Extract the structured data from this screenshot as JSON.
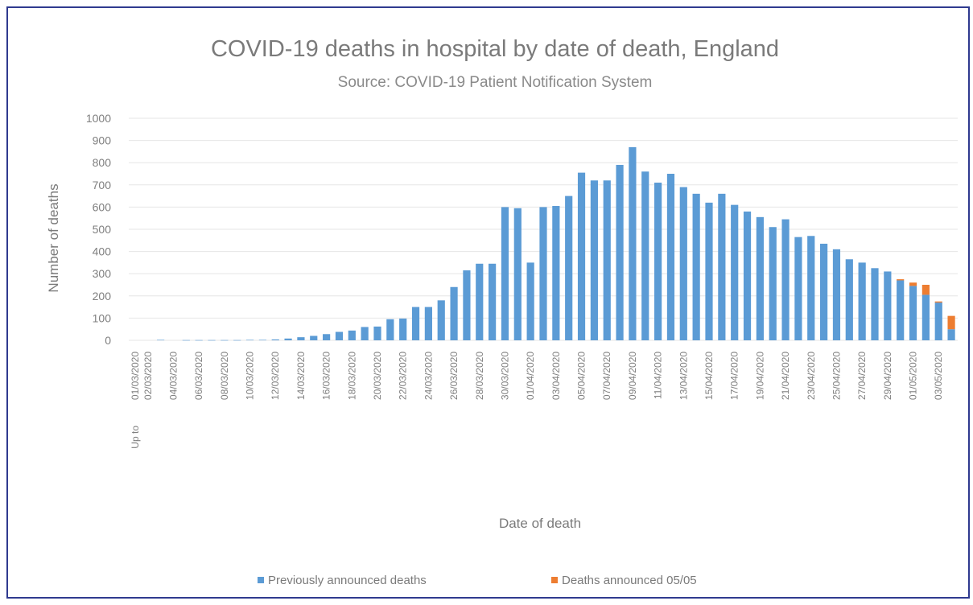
{
  "chart_data": {
    "type": "bar",
    "stacked": true,
    "title": "COVID-19 deaths in hospital by date of death, England",
    "subtitle": "Source: COVID-19 Patient Notification System",
    "xlabel": "Date of death",
    "ylabel": "Number of deaths",
    "ylim": [
      0,
      1000
    ],
    "yticks": [
      0,
      100,
      200,
      300,
      400,
      500,
      600,
      700,
      800,
      900,
      1000
    ],
    "grid": true,
    "legend_position": "bottom",
    "first_category_extra_label": "Up to",
    "categories": [
      "01/03/2020",
      "02/03/2020",
      "03/03/2020",
      "04/03/2020",
      "05/03/2020",
      "06/03/2020",
      "07/03/2020",
      "08/03/2020",
      "09/03/2020",
      "10/03/2020",
      "11/03/2020",
      "12/03/2020",
      "13/03/2020",
      "14/03/2020",
      "15/03/2020",
      "16/03/2020",
      "17/03/2020",
      "18/03/2020",
      "19/03/2020",
      "20/03/2020",
      "21/03/2020",
      "22/03/2020",
      "23/03/2020",
      "24/03/2020",
      "25/03/2020",
      "26/03/2020",
      "27/03/2020",
      "28/03/2020",
      "29/03/2020",
      "30/03/2020",
      "31/03/2020",
      "01/04/2020",
      "02/04/2020",
      "03/04/2020",
      "04/04/2020",
      "05/04/2020",
      "06/04/2020",
      "07/04/2020",
      "08/04/2020",
      "09/04/2020",
      "10/04/2020",
      "11/04/2020",
      "12/04/2020",
      "13/04/2020",
      "14/04/2020",
      "15/04/2020",
      "16/04/2020",
      "17/04/2020",
      "18/04/2020",
      "19/04/2020",
      "20/04/2020",
      "21/04/2020",
      "22/04/2020",
      "23/04/2020",
      "24/04/2020",
      "25/04/2020",
      "26/04/2020",
      "27/04/2020",
      "28/04/2020",
      "29/04/2020",
      "30/04/2020",
      "01/05/2020",
      "02/05/2020",
      "03/05/2020",
      "04/05/2020"
    ],
    "tick_labels": [
      "01/03/2020",
      "02/03/2020",
      "04/03/2020",
      "06/03/2020",
      "08/03/2020",
      "10/03/2020",
      "12/03/2020",
      "14/03/2020",
      "16/03/2020",
      "18/03/2020",
      "20/03/2020",
      "22/03/2020",
      "24/03/2020",
      "26/03/2020",
      "28/03/2020",
      "30/03/2020",
      "01/04/2020",
      "03/04/2020",
      "05/04/2020",
      "07/04/2020",
      "09/04/2020",
      "11/04/2020",
      "13/04/2020",
      "15/04/2020",
      "17/04/2020",
      "19/04/2020",
      "21/04/2020",
      "23/04/2020",
      "25/04/2020",
      "27/04/2020",
      "29/04/2020",
      "01/05/2020",
      "03/05/2020"
    ],
    "series": [
      {
        "name": "Previously announced deaths",
        "color": "#5b9bd5",
        "values": [
          0,
          0,
          2,
          0,
          1,
          1,
          1,
          1,
          1,
          2,
          2,
          4,
          8,
          14,
          20,
          28,
          38,
          44,
          60,
          62,
          95,
          98,
          150,
          150,
          180,
          240,
          315,
          345,
          345,
          600,
          595,
          350,
          600,
          605,
          650,
          755,
          720,
          720,
          790,
          870,
          760,
          710,
          750,
          690,
          660,
          620,
          660,
          610,
          580,
          555,
          510,
          545,
          465,
          470,
          435,
          410,
          365,
          350,
          325,
          310,
          270,
          245,
          205,
          170,
          50
        ]
      },
      {
        "name": "Deaths announced 05/05",
        "color": "#ed7d31",
        "values": [
          0,
          0,
          0,
          0,
          0,
          0,
          0,
          0,
          0,
          0,
          0,
          0,
          0,
          0,
          0,
          0,
          0,
          0,
          0,
          0,
          0,
          0,
          0,
          0,
          0,
          0,
          0,
          0,
          0,
          0,
          0,
          0,
          0,
          0,
          0,
          0,
          0,
          0,
          0,
          0,
          0,
          0,
          0,
          0,
          0,
          0,
          0,
          0,
          0,
          0,
          0,
          0,
          0,
          0,
          0,
          0,
          0,
          0,
          0,
          0,
          5,
          15,
          45,
          5,
          60
        ]
      }
    ]
  }
}
